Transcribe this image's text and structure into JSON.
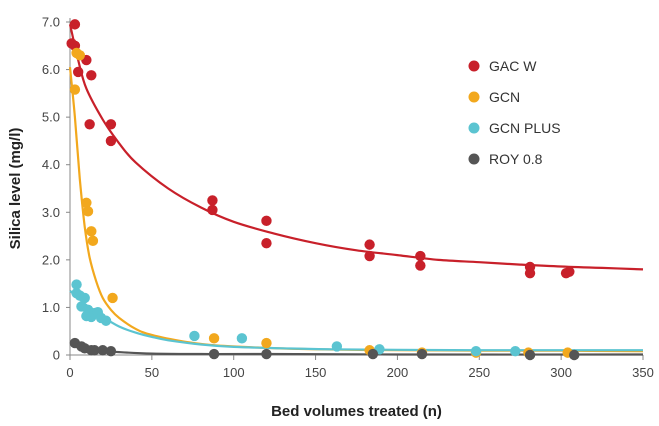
{
  "chart_data": {
    "type": "scatter",
    "xlabel": "Bed volumes treated (n)",
    "ylabel": "Silica level (mg/l)",
    "xlim": [
      0,
      350
    ],
    "ylim": [
      0,
      7.0
    ],
    "x_ticks": [
      "0",
      "50",
      "100",
      "150",
      "200",
      "250",
      "300",
      "350"
    ],
    "y_ticks": [
      "0",
      "1.0",
      "2.0",
      "3.0",
      "4.0",
      "5.0",
      "6.0",
      "7.0"
    ],
    "grid": false,
    "legend_position": "top-right",
    "series": [
      {
        "name": "GAC W",
        "color": "#c8202a",
        "points": [
          [
            3,
            6.95
          ],
          [
            1,
            6.55
          ],
          [
            3,
            6.5
          ],
          [
            5,
            5.95
          ],
          [
            10,
            6.2
          ],
          [
            13,
            5.88
          ],
          [
            12,
            4.85
          ],
          [
            25,
            4.85
          ],
          [
            25,
            4.5
          ],
          [
            87,
            3.25
          ],
          [
            87,
            3.05
          ],
          [
            120,
            2.82
          ],
          [
            120,
            2.35
          ],
          [
            183,
            2.32
          ],
          [
            183,
            2.08
          ],
          [
            214,
            2.08
          ],
          [
            214,
            1.88
          ],
          [
            281,
            1.85
          ],
          [
            281,
            1.72
          ],
          [
            303,
            1.72
          ],
          [
            305,
            1.75
          ]
        ],
        "fit": [
          [
            0,
            6.95
          ],
          [
            5,
            6.2
          ],
          [
            10,
            5.6
          ],
          [
            20,
            4.95
          ],
          [
            30,
            4.45
          ],
          [
            40,
            4.05
          ],
          [
            60,
            3.5
          ],
          [
            80,
            3.1
          ],
          [
            100,
            2.8
          ],
          [
            125,
            2.55
          ],
          [
            150,
            2.35
          ],
          [
            175,
            2.2
          ],
          [
            200,
            2.1
          ],
          [
            225,
            2.0
          ],
          [
            250,
            1.95
          ],
          [
            275,
            1.9
          ],
          [
            300,
            1.86
          ],
          [
            325,
            1.83
          ],
          [
            350,
            1.8
          ]
        ]
      },
      {
        "name": "GCN",
        "color": "#f2a81d",
        "points": [
          [
            4,
            6.35
          ],
          [
            6,
            6.3
          ],
          [
            3,
            5.58
          ],
          [
            10,
            3.2
          ],
          [
            11,
            3.02
          ],
          [
            13,
            2.6
          ],
          [
            14,
            2.4
          ],
          [
            26,
            1.2
          ],
          [
            88,
            0.35
          ],
          [
            120,
            0.25
          ],
          [
            183,
            0.1
          ],
          [
            215,
            0.05
          ],
          [
            248,
            0.05
          ],
          [
            280,
            0.05
          ],
          [
            304,
            0.05
          ]
        ],
        "fit": [
          [
            0,
            6.05
          ],
          [
            3,
            5.0
          ],
          [
            6,
            3.7
          ],
          [
            9,
            2.7
          ],
          [
            12,
            2.05
          ],
          [
            16,
            1.55
          ],
          [
            20,
            1.2
          ],
          [
            25,
            0.95
          ],
          [
            30,
            0.78
          ],
          [
            40,
            0.55
          ],
          [
            50,
            0.42
          ],
          [
            70,
            0.28
          ],
          [
            90,
            0.2
          ],
          [
            120,
            0.15
          ],
          [
            150,
            0.12
          ],
          [
            200,
            0.1
          ],
          [
            250,
            0.09
          ],
          [
            300,
            0.09
          ],
          [
            350,
            0.08
          ]
        ]
      },
      {
        "name": "GCN PLUS",
        "color": "#5bc4d1",
        "points": [
          [
            4,
            1.48
          ],
          [
            4,
            1.3
          ],
          [
            6,
            1.25
          ],
          [
            9,
            1.2
          ],
          [
            7,
            1.02
          ],
          [
            11,
            0.95
          ],
          [
            10,
            0.82
          ],
          [
            13,
            0.8
          ],
          [
            15,
            0.88
          ],
          [
            17,
            0.9
          ],
          [
            19,
            0.78
          ],
          [
            22,
            0.72
          ],
          [
            76,
            0.4
          ],
          [
            105,
            0.35
          ],
          [
            163,
            0.18
          ],
          [
            189,
            0.12
          ],
          [
            248,
            0.08
          ],
          [
            272,
            0.08
          ]
        ],
        "fit": [
          [
            0,
            1.35
          ],
          [
            5,
            1.2
          ],
          [
            10,
            1.05
          ],
          [
            15,
            0.92
          ],
          [
            20,
            0.8
          ],
          [
            30,
            0.6
          ],
          [
            40,
            0.47
          ],
          [
            50,
            0.38
          ],
          [
            60,
            0.31
          ],
          [
            80,
            0.22
          ],
          [
            100,
            0.17
          ],
          [
            130,
            0.14
          ],
          [
            160,
            0.12
          ],
          [
            200,
            0.11
          ],
          [
            250,
            0.1
          ],
          [
            300,
            0.1
          ],
          [
            350,
            0.1
          ]
        ]
      },
      {
        "name": "ROY 0.8",
        "color": "#555555",
        "points": [
          [
            3,
            0.25
          ],
          [
            7,
            0.18
          ],
          [
            9,
            0.14
          ],
          [
            13,
            0.1
          ],
          [
            15,
            0.1
          ],
          [
            20,
            0.1
          ],
          [
            25,
            0.08
          ],
          [
            88,
            0.02
          ],
          [
            120,
            0.02
          ],
          [
            185,
            0.02
          ],
          [
            215,
            0.02
          ],
          [
            281,
            0.0
          ],
          [
            308,
            0.0
          ]
        ],
        "fit": [
          [
            0,
            0.28
          ],
          [
            10,
            0.16
          ],
          [
            20,
            0.09
          ],
          [
            30,
            0.06
          ],
          [
            50,
            0.03
          ],
          [
            80,
            0.02
          ],
          [
            120,
            0.02
          ],
          [
            200,
            0.01
          ],
          [
            350,
            0.01
          ]
        ]
      }
    ]
  }
}
